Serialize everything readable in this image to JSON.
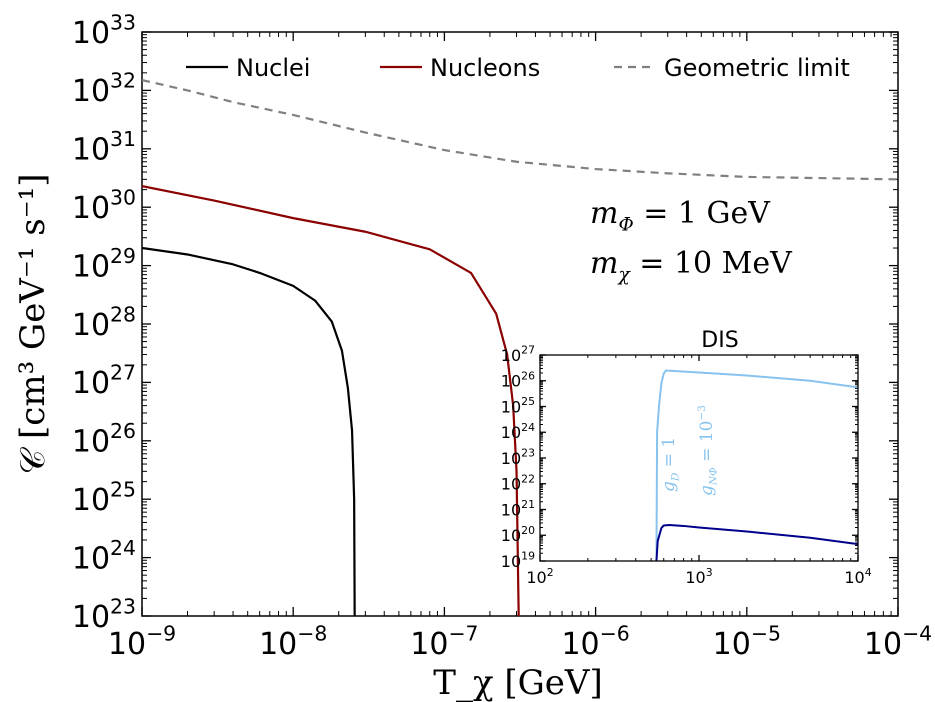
{
  "chart_data": [
    {
      "type": "line",
      "x_scale": "log",
      "y_scale": "log",
      "xlim": [
        1e-09,
        0.0001
      ],
      "ylim": [
        1e+23,
        1e+33
      ],
      "xlabel": "T_χ [GeV]",
      "ylabel": "𝒞 [cm³ GeV⁻¹ s⁻¹]",
      "x_ticks": [
        {
          "base": "10",
          "exp": "−9",
          "value": 1e-09
        },
        {
          "base": "10",
          "exp": "−8",
          "value": 1e-08
        },
        {
          "base": "10",
          "exp": "−7",
          "value": 1e-07
        },
        {
          "base": "10",
          "exp": "−6",
          "value": 1e-06
        },
        {
          "base": "10",
          "exp": "−5",
          "value": 1e-05
        },
        {
          "base": "10",
          "exp": "−4",
          "value": 0.0001
        }
      ],
      "y_ticks": [
        {
          "base": "10",
          "exp": "23",
          "value": 1e+23
        },
        {
          "base": "10",
          "exp": "24",
          "value": 1e+24
        },
        {
          "base": "10",
          "exp": "25",
          "value": 1e+25
        },
        {
          "base": "10",
          "exp": "26",
          "value": 1e+26
        },
        {
          "base": "10",
          "exp": "27",
          "value": 1e+27
        },
        {
          "base": "10",
          "exp": "28",
          "value": 1e+28
        },
        {
          "base": "10",
          "exp": "29",
          "value": 1e+29
        },
        {
          "base": "10",
          "exp": "30",
          "value": 1e+30
        },
        {
          "base": "10",
          "exp": "31",
          "value": 1e+31
        },
        {
          "base": "10",
          "exp": "32",
          "value": 1e+32
        },
        {
          "base": "10",
          "exp": "33",
          "value": 1e+33
        }
      ],
      "legend_position": "top",
      "series": [
        {
          "name": "Nuclei",
          "color": "#000000",
          "style": "solid",
          "points": [
            [
              1e-09,
              2e+29
            ],
            [
              2e-09,
              1.55e+29
            ],
            [
              4e-09,
              1.05e+29
            ],
            [
              6e-09,
              7.5e+28
            ],
            [
              1e-08,
              4.5e+28
            ],
            [
              1.4e-08,
              2.5e+28
            ],
            [
              1.8e-08,
              1.1e+28
            ],
            [
              2.1e-08,
              3.5e+27
            ],
            [
              2.3e-08,
              8e+26
            ],
            [
              2.45e-08,
              1.5e+26
            ],
            [
              2.53e-08,
              1e+25
            ],
            [
              2.55e-08,
              1e+23
            ]
          ]
        },
        {
          "name": "Nucleons",
          "color": "#8b0000",
          "style": "solid",
          "points": [
            [
              1e-09,
              2.3e+30
            ],
            [
              3e-09,
              1.3e+30
            ],
            [
              1e-08,
              6.5e+29
            ],
            [
              3e-08,
              3.8e+29
            ],
            [
              8e-08,
              1.9e+29
            ],
            [
              1.5e-07,
              7.5e+28
            ],
            [
              2.2e-07,
              1.5e+28
            ],
            [
              2.6e-07,
              3e+27
            ],
            [
              2.85e-07,
              4e+26
            ],
            [
              3e-07,
              3e+25
            ],
            [
              3.1e-07,
              1e+23
            ]
          ]
        },
        {
          "name": "Geometric limit",
          "color": "#808080",
          "style": "dashed",
          "points": [
            [
              1e-09,
              1.5e+32
            ],
            [
              2e-09,
              1e+32
            ],
            [
              4e-09,
              6.3e+31
            ],
            [
              1e-08,
              3.8e+31
            ],
            [
              3e-08,
              1.9e+31
            ],
            [
              1e-07,
              9.5e+30
            ],
            [
              3e-07,
              6e+30
            ],
            [
              1e-06,
              4.5e+30
            ],
            [
              3e-06,
              3.8e+30
            ],
            [
              1e-05,
              3.3e+30
            ],
            [
              0.0001,
              3e+30
            ]
          ]
        }
      ],
      "annotations": [
        {
          "var": "m",
          "sub": "Φ",
          "eq": " = 1 GeV"
        },
        {
          "var": "m",
          "sub": "χ",
          "eq": " = 10 MeV"
        }
      ]
    },
    {
      "type": "line",
      "title": "DIS",
      "x_scale": "log",
      "y_scale": "log",
      "xlim": [
        100,
        10000
      ],
      "ylim": [
        1e+19,
        1e+27
      ],
      "x_ticks": [
        {
          "base": "10",
          "exp": "2",
          "value": 100
        },
        {
          "base": "10",
          "exp": "3",
          "value": 1000
        },
        {
          "base": "10",
          "exp": "4",
          "value": 10000
        }
      ],
      "y_ticks": [
        {
          "base": "10",
          "exp": "19",
          "value": 1e+19
        },
        {
          "base": "10",
          "exp": "20",
          "value": 1e+20
        },
        {
          "base": "10",
          "exp": "21",
          "value": 1e+21
        },
        {
          "base": "10",
          "exp": "22",
          "value": 1e+22
        },
        {
          "base": "10",
          "exp": "23",
          "value": 1e+23
        },
        {
          "base": "10",
          "exp": "24",
          "value": 1e+24
        },
        {
          "base": "10",
          "exp": "25",
          "value": 1e+25
        },
        {
          "base": "10",
          "exp": "26",
          "value": 1e+26
        },
        {
          "base": "10",
          "exp": "27",
          "value": 1e+27
        }
      ],
      "series": [
        {
          "color": "#87c3ee",
          "style": "solid",
          "points": [
            [
              540,
              1e+19
            ],
            [
              545,
              1e+24
            ],
            [
              560,
              1e+25
            ],
            [
              580,
              8e+25
            ],
            [
              600,
              1.9e+26
            ],
            [
              620,
              2.5e+26
            ],
            [
              700,
              2.4e+26
            ],
            [
              1000,
              2.1e+26
            ],
            [
              2000,
              1.6e+26
            ],
            [
              5000,
              1e+26
            ],
            [
              10000,
              5.5e+25
            ]
          ]
        },
        {
          "color": "#00008b",
          "style": "solid",
          "points": [
            [
              540,
              1e+19
            ],
            [
              550,
              6e+19
            ],
            [
              580,
              1.9e+20
            ],
            [
              600,
              2.4e+20
            ],
            [
              650,
              2.5e+20
            ],
            [
              800,
              2.3e+20
            ],
            [
              1000,
              2e+20
            ],
            [
              2000,
              1.4e+20
            ],
            [
              5000,
              8e+19
            ],
            [
              10000,
              4.5e+19
            ]
          ]
        }
      ],
      "curve_labels": [
        {
          "var": "g",
          "sub": "D",
          "eq": " = 1"
        },
        {
          "var": "g",
          "sub": "NΦ",
          "eq": " = 10",
          "sup": "−3"
        }
      ]
    }
  ]
}
